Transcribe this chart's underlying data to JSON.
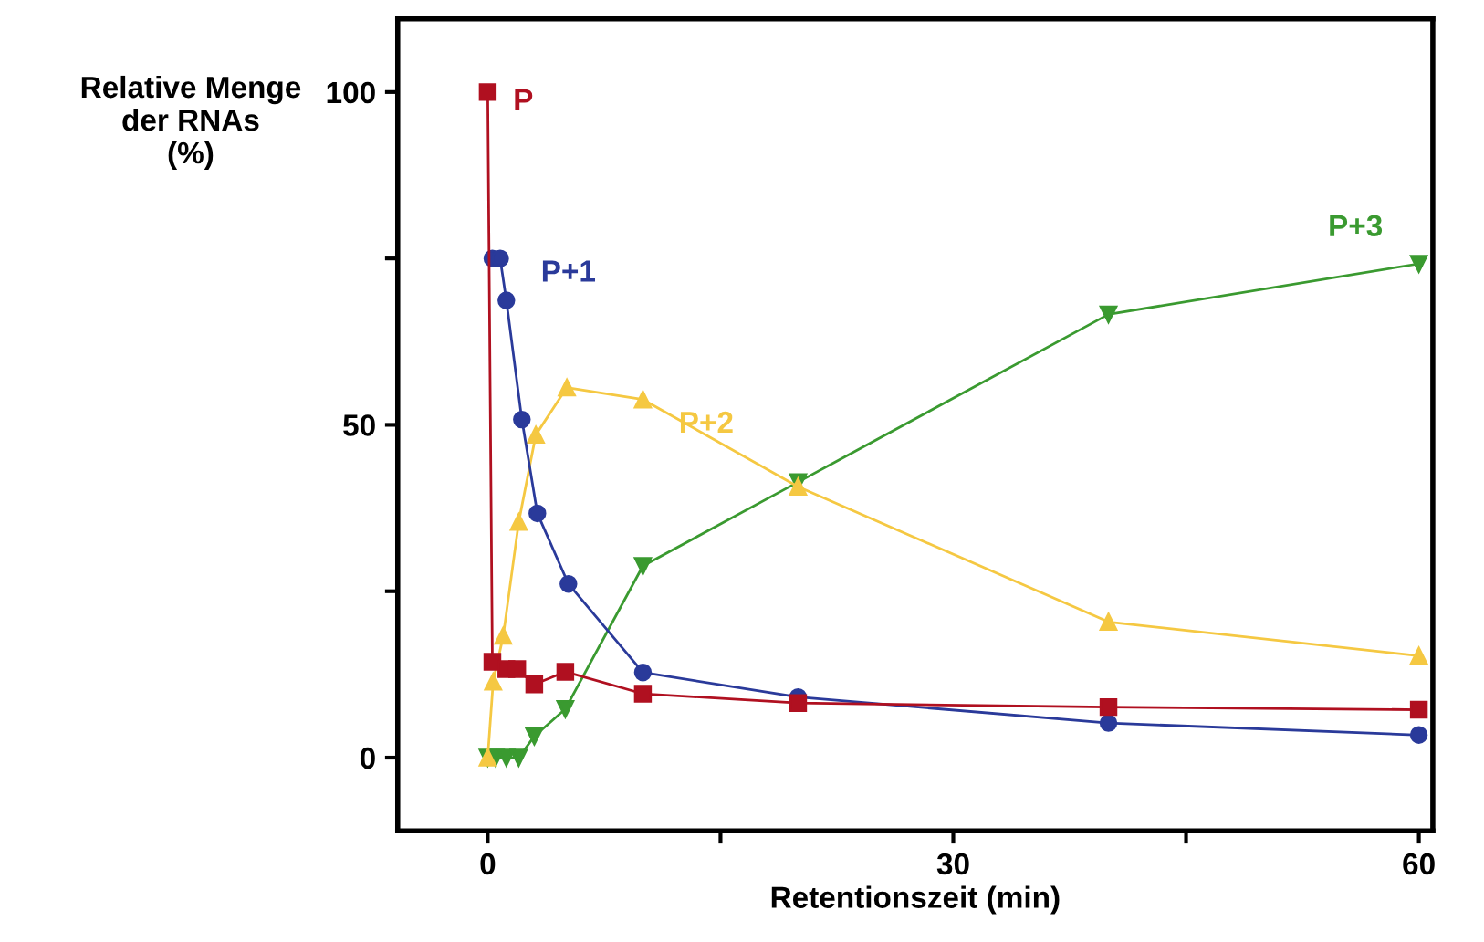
{
  "chart_data": {
    "type": "line",
    "xlabel": "Retentionszeit (min)",
    "ylabel": "Relative Menge\nder RNAs\n(%)",
    "xlim": [
      -5.8,
      60.9
    ],
    "ylim": [
      -11,
      111
    ],
    "xticks": [
      0,
      {
        "value": 15,
        "label": null
      },
      30,
      {
        "value": 45,
        "label": null
      },
      60
    ],
    "yticks": [
      0,
      {
        "value": 25,
        "label": null
      },
      50,
      {
        "value": 75,
        "label": null
      },
      100
    ],
    "grid": false,
    "legend": false,
    "series": [
      {
        "name": "P",
        "color": "#b01020",
        "marker": "square",
        "x": [
          0,
          0.3,
          1.2,
          1.9,
          3,
          5,
          10,
          20,
          40,
          60
        ],
        "values": [
          100,
          14.4,
          13.3,
          13.3,
          11,
          12.9,
          9.6,
          8.2,
          7.6,
          7.2
        ]
      },
      {
        "name": "P+1",
        "color": "#2a3a9a",
        "marker": "circle",
        "x": [
          0.3,
          0.8,
          1.2,
          2.2,
          3.2,
          5.2,
          10,
          20,
          40,
          60
        ],
        "values": [
          75,
          75,
          68.7,
          50.8,
          36.7,
          26.1,
          12.8,
          9.1,
          5.2,
          3.4
        ]
      },
      {
        "name": "P+2",
        "color": "#f5c842",
        "marker": "triangle",
        "x": [
          0,
          0.35,
          1,
          2,
          3.1,
          5.1,
          10,
          20,
          40,
          60
        ],
        "values": [
          0,
          11.4,
          18.3,
          35.4,
          48.5,
          55.6,
          53.8,
          40.7,
          20.4,
          15.3
        ]
      },
      {
        "name": "P+3",
        "color": "#3a9a30",
        "marker": "triangle_down",
        "x": [
          0,
          0.5,
          1.2,
          2,
          3,
          5,
          10,
          20,
          40,
          60
        ],
        "values": [
          0,
          0,
          0,
          0,
          3.2,
          7.3,
          28.8,
          41.4,
          66.6,
          74.2
        ]
      }
    ]
  }
}
